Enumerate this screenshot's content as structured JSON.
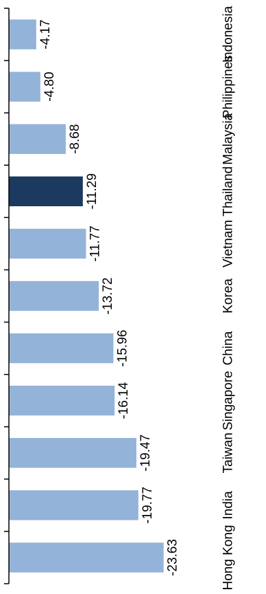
{
  "chart_data": {
    "type": "bar",
    "orientation": "horizontal",
    "rotation_degrees": 180,
    "categories": [
      "Hong Kong",
      "India",
      "Taiwan",
      "Singapore",
      "China",
      "Korea",
      "Vietnam",
      "Thailand",
      "Malaysia",
      "Philippines",
      "Indonesia"
    ],
    "values": [
      -23.63,
      -19.77,
      -19.47,
      -16.14,
      -15.96,
      -13.72,
      -11.77,
      -11.29,
      -8.68,
      -4.8,
      -4.17
    ],
    "value_labels": [
      "-23.63",
      "-19.77",
      "-19.47",
      "-16.14",
      "-15.96",
      "-13.72",
      "-11.77",
      "-11.29",
      "-8.68",
      "-4.80",
      "-4.17"
    ],
    "highlighted_category": "Thailand",
    "grid": false,
    "title": "",
    "xlabel": "",
    "ylabel": "",
    "colors": {
      "bar": "#93b3d9",
      "highlight": "#1c3a5f",
      "axis": "#000000",
      "text": "#000000"
    }
  }
}
